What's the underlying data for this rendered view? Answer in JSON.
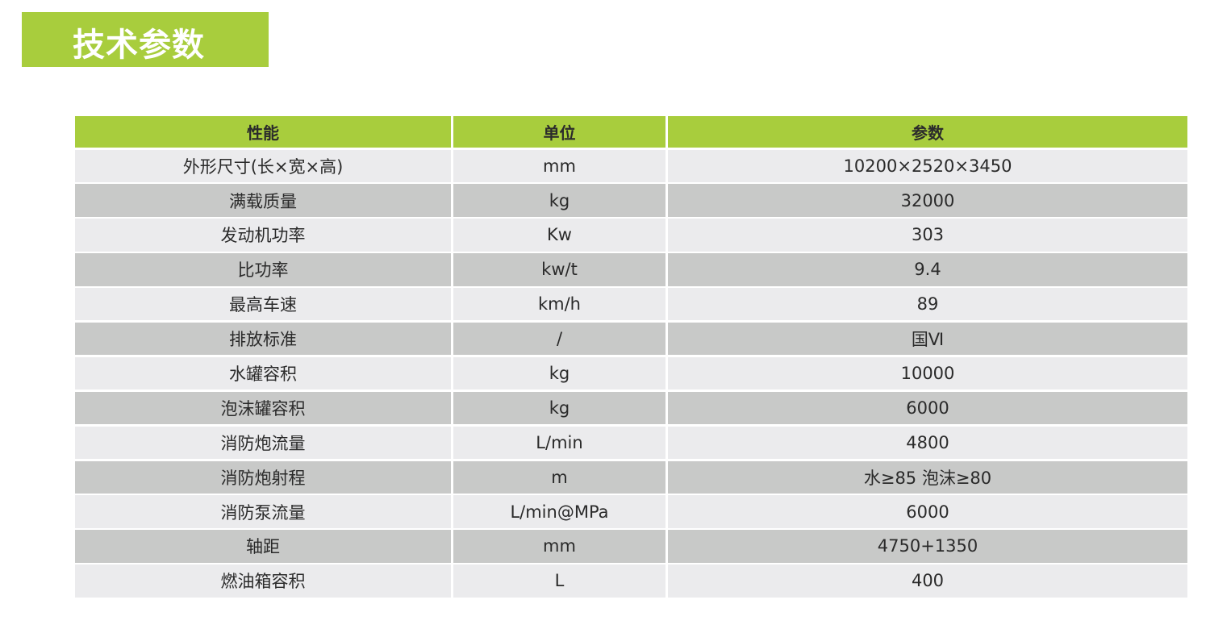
{
  "title": "技术参数",
  "colors": {
    "accent": "#a8cd3d",
    "row_light": "#ebebed",
    "row_dark": "#c8c9c8"
  },
  "table": {
    "headers": [
      "性能",
      "单位",
      "参数"
    ],
    "rows": [
      [
        "外形尺寸(长×宽×高)",
        "mm",
        "10200×2520×3450"
      ],
      [
        "满载质量",
        "kg",
        "32000"
      ],
      [
        "发动机功率",
        "Kw",
        "303"
      ],
      [
        "比功率",
        "kw/t",
        "9.4"
      ],
      [
        "最高车速",
        "km/h",
        "89"
      ],
      [
        "排放标准",
        "/",
        "国Ⅵ"
      ],
      [
        "水罐容积",
        "kg",
        "10000"
      ],
      [
        "泡沫罐容积",
        "kg",
        "6000"
      ],
      [
        "消防炮流量",
        "L/min",
        "4800"
      ],
      [
        "消防炮射程",
        "m",
        "水≥85 泡沫≥80"
      ],
      [
        "消防泵流量",
        "L/min@MPa",
        "6000"
      ],
      [
        "轴距",
        "mm",
        "4750+1350"
      ],
      [
        "燃油箱容积",
        "L",
        "400"
      ]
    ]
  }
}
